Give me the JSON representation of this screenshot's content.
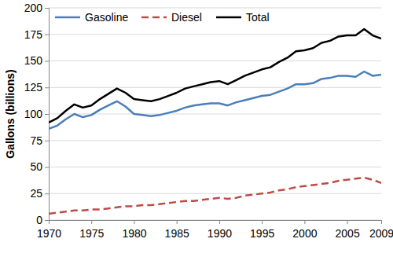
{
  "chart_data": {
    "type": "line",
    "y_label": "Gallons (billions)",
    "x": [
      1970,
      1971,
      1972,
      1973,
      1974,
      1975,
      1976,
      1977,
      1978,
      1979,
      1980,
      1981,
      1982,
      1983,
      1984,
      1985,
      1986,
      1987,
      1988,
      1989,
      1990,
      1991,
      1992,
      1993,
      1994,
      1995,
      1996,
      1997,
      1998,
      1999,
      2000,
      2001,
      2002,
      2003,
      2004,
      2005,
      2006,
      2007,
      2008,
      2009
    ],
    "series": [
      {
        "name": "Gasoline",
        "color": "#4a7ebb",
        "line_style": "solid",
        "values": [
          86,
          89,
          95,
          100,
          97,
          99,
          104,
          108,
          112,
          107,
          100,
          99,
          98,
          99,
          101,
          103,
          106,
          108,
          109,
          110,
          110,
          108,
          111,
          113,
          115,
          117,
          118,
          121,
          124,
          128,
          128,
          129,
          133,
          134,
          136,
          136,
          135,
          140,
          136,
          137
        ]
      },
      {
        "name": "Diesel",
        "color": "#be4b48",
        "line_style": "dashed",
        "values": [
          6,
          7,
          8,
          9,
          9,
          10,
          10,
          11,
          12,
          13,
          13,
          14,
          14,
          15,
          16,
          17,
          18,
          18,
          19,
          20,
          21,
          20,
          21,
          23,
          24,
          25,
          26,
          28,
          29,
          31,
          32,
          33,
          34,
          35,
          37,
          38,
          39,
          40,
          38,
          35
        ]
      },
      {
        "name": "Total",
        "color": "#000000",
        "line_style": "solid",
        "values": [
          92,
          96,
          103,
          109,
          106,
          108,
          114,
          119,
          124,
          120,
          114,
          113,
          112,
          114,
          117,
          120,
          124,
          126,
          128,
          130,
          131,
          128,
          132,
          136,
          139,
          142,
          144,
          149,
          153,
          159,
          160,
          162,
          167,
          169,
          173,
          174,
          174,
          180,
          174,
          171
        ]
      }
    ],
    "xlim": [
      1970,
      2009
    ],
    "xticks": [
      1970,
      1975,
      1980,
      1985,
      1990,
      1995,
      2000,
      2005,
      2009
    ],
    "ylim": [
      0,
      200
    ],
    "yticks": [
      0,
      25,
      50,
      75,
      100,
      125,
      150,
      175,
      200
    ],
    "grid": true,
    "legend": "top-left"
  }
}
